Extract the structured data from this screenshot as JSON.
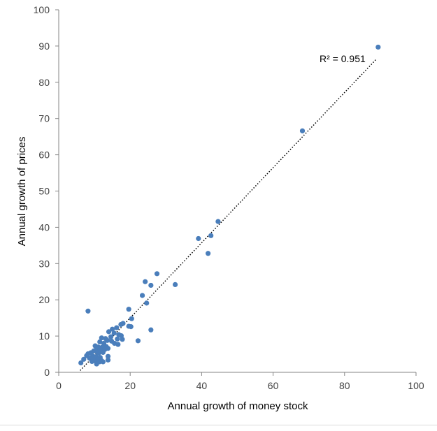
{
  "chart_data": {
    "type": "scatter",
    "xlabel": "Annual growth of money stock",
    "ylabel": "Annual growth of prices",
    "xlim": [
      0,
      100
    ],
    "ylim": [
      0,
      100
    ],
    "xticks": [
      0,
      20,
      40,
      60,
      80,
      100
    ],
    "yticks": [
      0,
      10,
      20,
      30,
      40,
      50,
      60,
      70,
      80,
      90,
      100
    ],
    "grid": false,
    "legend": "none",
    "annotation": "R² = 0.951",
    "point_color": "#4a7ebb",
    "trendline": {
      "style": "dotted",
      "color": "#000000",
      "x": [
        6,
        89
      ],
      "y": [
        0.5,
        86.5
      ]
    },
    "points": [
      [
        89.4,
        89.7
      ],
      [
        68.2,
        66.6
      ],
      [
        44.6,
        41.6
      ],
      [
        42.6,
        37.7
      ],
      [
        39.1,
        36.9
      ],
      [
        41.8,
        32.8
      ],
      [
        27.5,
        27.2
      ],
      [
        32.6,
        24.2
      ],
      [
        24.2,
        25.0
      ],
      [
        25.8,
        24.0
      ],
      [
        23.4,
        21.2
      ],
      [
        24.6,
        19.1
      ],
      [
        19.6,
        17.4
      ],
      [
        8.2,
        16.9
      ],
      [
        20.4,
        14.8
      ],
      [
        19.6,
        12.7
      ],
      [
        20.2,
        12.6
      ],
      [
        25.8,
        11.7
      ],
      [
        22.2,
        8.7
      ],
      [
        18.0,
        13.5
      ],
      [
        17.4,
        13.2
      ],
      [
        16.2,
        12.3
      ],
      [
        15.0,
        11.9
      ],
      [
        14.0,
        11.2
      ],
      [
        15.5,
        10.8
      ],
      [
        16.8,
        10.4
      ],
      [
        17.5,
        10.1
      ],
      [
        14.6,
        9.8
      ],
      [
        12.0,
        9.5
      ],
      [
        13.1,
        9.3
      ],
      [
        16.4,
        9.2
      ],
      [
        17.8,
        9.1
      ],
      [
        13.6,
        8.8
      ],
      [
        14.8,
        8.6
      ],
      [
        11.5,
        8.4
      ],
      [
        12.6,
        8.0
      ],
      [
        15.6,
        8.0
      ],
      [
        16.6,
        7.7
      ],
      [
        10.2,
        7.3
      ],
      [
        11.0,
        7.0
      ],
      [
        13.3,
        7.1
      ],
      [
        12.1,
        6.9
      ],
      [
        10.6,
        6.5
      ],
      [
        11.6,
        6.2
      ],
      [
        12.9,
        6.3
      ],
      [
        13.8,
        6.6
      ],
      [
        9.8,
        5.9
      ],
      [
        10.8,
        5.6
      ],
      [
        9.0,
        5.4
      ],
      [
        8.2,
        5.1
      ],
      [
        11.2,
        5.3
      ],
      [
        12.4,
        5.5
      ],
      [
        7.8,
        4.6
      ],
      [
        9.5,
        4.5
      ],
      [
        10.4,
        4.3
      ],
      [
        11.6,
        4.1
      ],
      [
        13.8,
        4.4
      ],
      [
        8.6,
        3.9
      ],
      [
        7.0,
        3.6
      ],
      [
        9.8,
        3.3
      ],
      [
        11.0,
        3.6
      ],
      [
        12.0,
        3.2
      ],
      [
        13.8,
        3.4
      ],
      [
        9.3,
        3.0
      ],
      [
        10.5,
        2.9
      ],
      [
        11.4,
        2.9
      ],
      [
        12.4,
        2.9
      ],
      [
        6.2,
        2.6
      ],
      [
        10.6,
        2.3
      ]
    ]
  }
}
